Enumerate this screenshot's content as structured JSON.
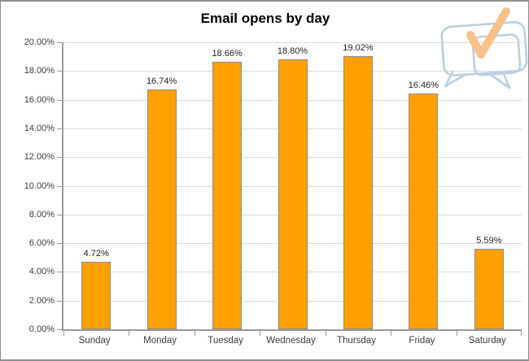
{
  "title": "Email opens by day",
  "logo": {
    "name": "speech-bubbles-check-logo",
    "bubble_color": "#bccfe3",
    "check_color": "#f7c189"
  },
  "chart_data": {
    "type": "bar",
    "title": "Email opens by day",
    "categories": [
      "Sunday",
      "Monday",
      "Tuesday",
      "Wednesday",
      "Thursday",
      "Friday",
      "Saturday"
    ],
    "values": [
      4.72,
      16.74,
      18.66,
      18.8,
      19.02,
      16.46,
      5.59
    ],
    "value_labels": [
      "4.72%",
      "16.74%",
      "18.66%",
      "18.80%",
      "19.02%",
      "16.46%",
      "5.59%"
    ],
    "xlabel": "",
    "ylabel": "",
    "ylim": [
      0,
      20
    ],
    "ytick_values": [
      0,
      2,
      4,
      6,
      8,
      10,
      12,
      14,
      16,
      18,
      20
    ],
    "ytick_labels": [
      "0.00%",
      "2.00%",
      "4.00%",
      "6.00%",
      "8.00%",
      "10.00%",
      "12.00%",
      "14.00%",
      "16.00%",
      "18.00%",
      "20.00%"
    ],
    "grid": true,
    "legend": false,
    "bar_color": "#ffa000",
    "bar_border_color": "#8c8c8c",
    "gridline_color": "#dadada",
    "axis_color": "#9a9a9a"
  }
}
